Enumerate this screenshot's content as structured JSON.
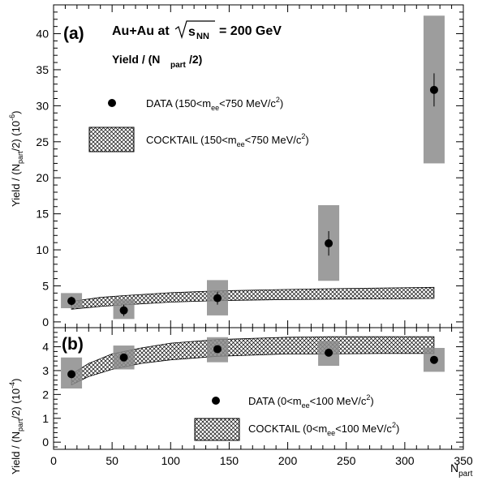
{
  "panel_a": {
    "label": "(a)",
    "system_text": "Au+Au at",
    "sqrt_sub": "NN",
    "energy_text": "= 200 GeV",
    "yield_title_main": "Yield / (N",
    "yield_title_sub": "part",
    "yield_title_end": "/2)",
    "ylabel_main": "Yield / (N",
    "ylabel_sub": "part",
    "ylabel_mid": "/2) (10",
    "ylabel_exp": "-6",
    "ylabel_end": ")",
    "legend_data": {
      "pre": "DATA (150<m",
      "sub": "ee",
      "mid": "<750 MeV/c",
      "sup": "2",
      "post": ")"
    },
    "legend_cocktail": {
      "pre": "COCKTAIL (150<m",
      "sub": "ee",
      "mid": "<750 MeV/c",
      "sup": "2",
      "post": ")"
    }
  },
  "panel_b": {
    "label": "(b)",
    "ylabel_main": "Yield / (N",
    "ylabel_sub": "part",
    "ylabel_mid": "/2) (10",
    "ylabel_exp": "-4",
    "ylabel_end": ")",
    "legend_data": {
      "pre": "DATA (0<m",
      "sub": "ee",
      "mid": "<100 MeV/c",
      "sup": "2",
      "post": ")"
    },
    "legend_cocktail": {
      "pre": "COCKTAIL (0<m",
      "sub": "ee",
      "mid": "<100 MeV/c",
      "sup": "2",
      "post": ")"
    }
  },
  "xaxis": {
    "label_main": "N",
    "label_sub": "part"
  },
  "chart_data": [
    {
      "type": "scatter",
      "panel": "a",
      "xlim": [
        0,
        350
      ],
      "ylim": [
        -0.8,
        44
      ],
      "xticks": [
        0,
        50,
        100,
        150,
        200,
        250,
        300,
        350
      ],
      "yticks": [
        0,
        5,
        10,
        15,
        20,
        25,
        30,
        35,
        40
      ],
      "series": [
        {
          "name": "DATA (150<mee<750 MeV/c2)",
          "x": [
            15.3,
            60,
            140,
            235,
            325
          ],
          "y": [
            2.9,
            1.6,
            3.3,
            10.9,
            32.2
          ],
          "stat_err": [
            0.6,
            0.8,
            0.9,
            1.7,
            2.3
          ],
          "sys_low": [
            1.9,
            0.4,
            0.9,
            5.7,
            22.0
          ],
          "sys_high": [
            4.0,
            3.1,
            5.8,
            16.2,
            42.5
          ]
        },
        {
          "name": "COCKTAIL (150<mee<750 MeV/c2)",
          "x": [
            15.3,
            40,
            60,
            100,
            140,
            200,
            235,
            280,
            325
          ],
          "y_low": [
            1.75,
            2.15,
            2.35,
            2.75,
            2.95,
            3.1,
            3.15,
            3.2,
            3.25
          ],
          "y_high": [
            2.85,
            3.4,
            3.65,
            4.05,
            4.3,
            4.5,
            4.6,
            4.7,
            4.8
          ]
        }
      ]
    },
    {
      "type": "scatter",
      "panel": "b",
      "xlim": [
        0,
        350
      ],
      "ylim": [
        -0.3,
        4.8
      ],
      "xticks": [
        0,
        50,
        100,
        150,
        200,
        250,
        300,
        350
      ],
      "yticks": [
        0,
        1,
        2,
        3,
        4
      ],
      "series": [
        {
          "name": "DATA (0<mee<100 MeV/c2)",
          "x": [
            15.3,
            60,
            140,
            235,
            325
          ],
          "y": [
            2.85,
            3.55,
            3.9,
            3.75,
            3.45
          ],
          "stat_err": [
            0.1,
            0.1,
            0.1,
            0.1,
            0.1
          ],
          "sys_low": [
            2.25,
            3.05,
            3.35,
            3.2,
            2.95
          ],
          "sys_high": [
            3.55,
            4.05,
            4.4,
            4.25,
            3.95
          ]
        },
        {
          "name": "COCKTAIL (0<mee<100 MeV/c2)",
          "x": [
            15.3,
            30,
            50,
            75,
            100,
            140,
            200,
            235,
            280,
            325
          ],
          "y_low": [
            2.4,
            2.75,
            3.05,
            3.3,
            3.45,
            3.6,
            3.7,
            3.7,
            3.72,
            3.72
          ],
          "y_high": [
            2.85,
            3.3,
            3.7,
            3.95,
            4.15,
            4.3,
            4.4,
            4.42,
            4.42,
            4.42
          ]
        }
      ]
    }
  ]
}
